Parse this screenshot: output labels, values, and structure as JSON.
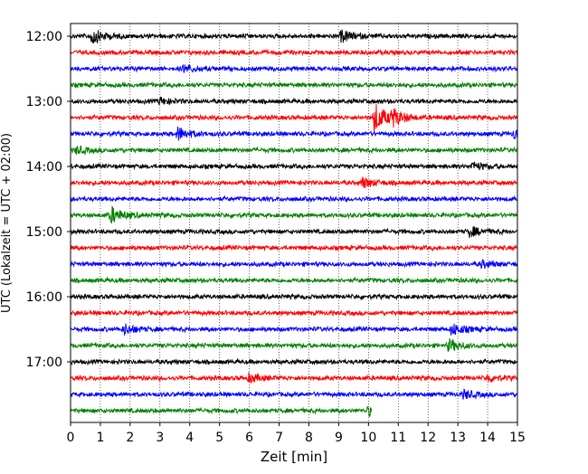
{
  "chart_data": {
    "type": "line",
    "xlabel": "Zeit  [min]",
    "ylabel": "UTC (Lokalzeit = UTC + 02:00)",
    "xlim": [
      0,
      15
    ],
    "x_ticks": [
      "0",
      "1",
      "2",
      "3",
      "4",
      "5",
      "6",
      "7",
      "8",
      "9",
      "10",
      "11",
      "12",
      "13",
      "14",
      "15"
    ],
    "y_ticks": [
      "12:00",
      "13:00",
      "14:00",
      "15:00",
      "16:00",
      "17:00"
    ],
    "grid_x": true,
    "grid_y": false,
    "trace_interval_min": 15,
    "start_time": "12:00",
    "last_trace_end_min": 10.1,
    "colors": [
      "#000000",
      "#ff0000",
      "#0000ff",
      "#008000"
    ],
    "series": [
      {
        "start": "12:00",
        "color": "#000000",
        "end_min": 15,
        "events": [
          {
            "x": 0.7,
            "amp": 1.0
          },
          {
            "x": 9.1,
            "amp": 0.7
          }
        ]
      },
      {
        "start": "12:15",
        "color": "#ff0000",
        "end_min": 15,
        "events": []
      },
      {
        "start": "12:30",
        "color": "#0000ff",
        "end_min": 15,
        "events": [
          {
            "x": 3.8,
            "amp": 0.5
          }
        ]
      },
      {
        "start": "12:45",
        "color": "#008000",
        "end_min": 15,
        "events": []
      },
      {
        "start": "13:00",
        "color": "#000000",
        "end_min": 15,
        "events": [
          {
            "x": 3.0,
            "amp": 0.4
          }
        ]
      },
      {
        "start": "13:15",
        "color": "#ff0000",
        "end_min": 15,
        "events": [
          {
            "x": 10.2,
            "amp": 1.8
          },
          {
            "x": 10.8,
            "amp": 0.9
          }
        ]
      },
      {
        "start": "13:30",
        "color": "#0000ff",
        "end_min": 15,
        "events": [
          {
            "x": 3.6,
            "amp": 0.8
          },
          {
            "x": 14.9,
            "amp": 0.6
          }
        ]
      },
      {
        "start": "13:45",
        "color": "#008000",
        "end_min": 15,
        "events": [
          {
            "x": 0.2,
            "amp": 0.4
          }
        ]
      },
      {
        "start": "14:00",
        "color": "#000000",
        "end_min": 15,
        "events": [
          {
            "x": 13.5,
            "amp": 0.5
          }
        ]
      },
      {
        "start": "14:15",
        "color": "#ff0000",
        "end_min": 15,
        "events": [
          {
            "x": 9.8,
            "amp": 0.6
          }
        ]
      },
      {
        "start": "14:30",
        "color": "#0000ff",
        "end_min": 15,
        "events": []
      },
      {
        "start": "14:45",
        "color": "#008000",
        "end_min": 15,
        "events": [
          {
            "x": 1.35,
            "amp": 1.0
          }
        ]
      },
      {
        "start": "15:00",
        "color": "#000000",
        "end_min": 15,
        "events": [
          {
            "x": 13.4,
            "amp": 0.6
          }
        ]
      },
      {
        "start": "15:15",
        "color": "#ff0000",
        "end_min": 15,
        "events": []
      },
      {
        "start": "15:30",
        "color": "#0000ff",
        "end_min": 15,
        "events": [
          {
            "x": 13.8,
            "amp": 0.4
          }
        ]
      },
      {
        "start": "15:45",
        "color": "#008000",
        "end_min": 15,
        "events": []
      },
      {
        "start": "16:00",
        "color": "#000000",
        "end_min": 15,
        "events": []
      },
      {
        "start": "16:15",
        "color": "#ff0000",
        "end_min": 15,
        "events": []
      },
      {
        "start": "16:30",
        "color": "#0000ff",
        "end_min": 15,
        "events": [
          {
            "x": 1.8,
            "amp": 0.6
          },
          {
            "x": 12.8,
            "amp": 0.7
          }
        ]
      },
      {
        "start": "16:45",
        "color": "#008000",
        "end_min": 15,
        "events": [
          {
            "x": 12.7,
            "amp": 0.7
          }
        ]
      },
      {
        "start": "17:00",
        "color": "#000000",
        "end_min": 15,
        "events": []
      },
      {
        "start": "17:15",
        "color": "#ff0000",
        "end_min": 15,
        "events": [
          {
            "x": 6.0,
            "amp": 0.5
          },
          {
            "x": 14.0,
            "amp": 0.4
          }
        ]
      },
      {
        "start": "17:30",
        "color": "#0000ff",
        "end_min": 15,
        "events": [
          {
            "x": 13.2,
            "amp": 0.5
          }
        ]
      },
      {
        "start": "17:45",
        "color": "#008000",
        "end_min": 10.1,
        "events": [
          {
            "x": 10.0,
            "amp": 0.5
          }
        ]
      }
    ]
  }
}
